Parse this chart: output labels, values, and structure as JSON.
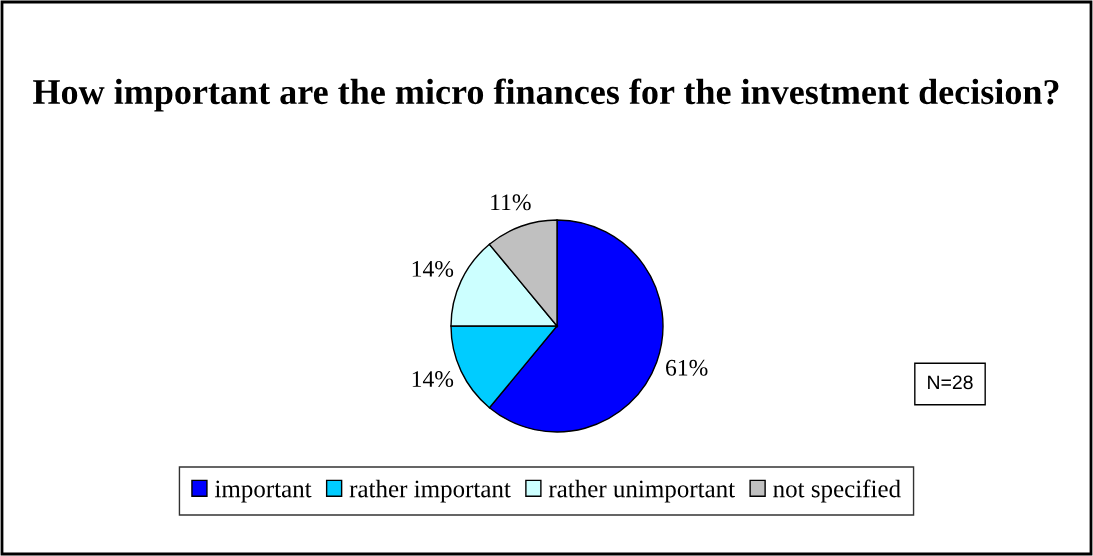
{
  "chart_data": {
    "type": "pie",
    "title": "How important are the micro finances for the investment decision?",
    "categories": [
      "important",
      "rather important",
      "rather unimportant",
      "not specified"
    ],
    "values": [
      61,
      14,
      14,
      11
    ],
    "colors": [
      "#0000ff",
      "#00ccff",
      "#ccffff",
      "#c0c0c0"
    ],
    "value_labels": [
      "61%",
      "14%",
      "14%",
      "11%"
    ],
    "annotations": [
      "N=28"
    ],
    "legend": "bottom"
  }
}
